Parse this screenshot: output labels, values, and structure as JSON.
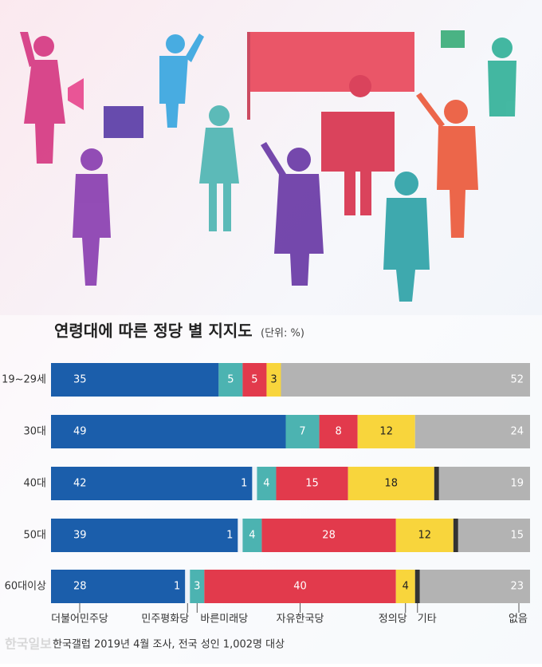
{
  "chart_data": {
    "type": "stacked-bar-horizontal",
    "title": "연령대에 따른 정당 별 지지도",
    "subtitle": "(단위: %)",
    "source": "한국갤럽 2019년 4월 조사, 전국 성인 1,002명 대상",
    "watermark": "한국일보",
    "categories": [
      "19~29세",
      "30대",
      "40대",
      "50대",
      "60대이상"
    ],
    "xlim": [
      0,
      100
    ],
    "series": [
      {
        "name": "더불어민주당",
        "color": "#1b5eab",
        "values": [
          35,
          49,
          42,
          39,
          28
        ]
      },
      {
        "name": "민주평화당",
        "color": "#eef3f8",
        "values": [
          null,
          null,
          1,
          1,
          1
        ]
      },
      {
        "name": "바른미래당",
        "color": "#4cb3b1",
        "values": [
          5,
          7,
          4,
          4,
          3
        ]
      },
      {
        "name": "자유한국당",
        "color": "#e23a4c",
        "values": [
          5,
          8,
          15,
          28,
          40
        ]
      },
      {
        "name": "정의당",
        "color": "#f8d53c",
        "values": [
          3,
          12,
          18,
          12,
          4
        ]
      },
      {
        "name": "기타",
        "color": "#333333",
        "values": [
          null,
          null,
          1,
          1,
          1
        ]
      },
      {
        "name": "없음",
        "color": "#b3b3b3",
        "values": [
          52,
          24,
          19,
          15,
          23
        ]
      }
    ]
  }
}
